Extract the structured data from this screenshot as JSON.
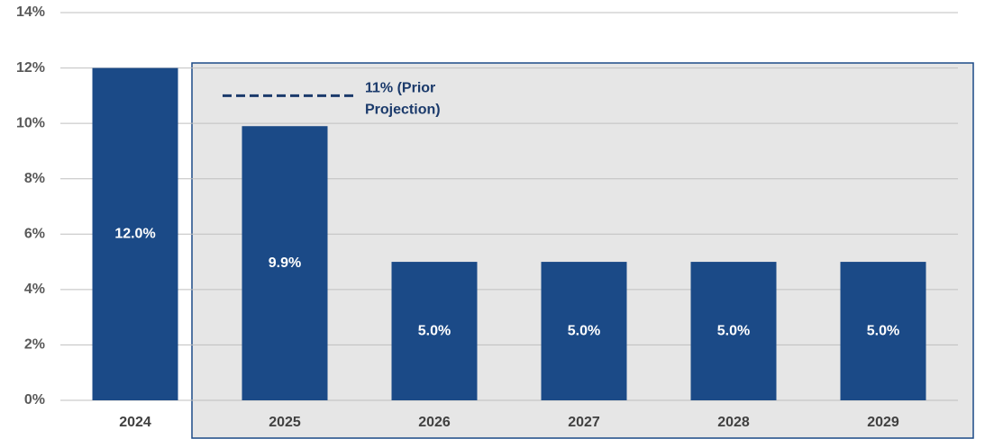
{
  "chart_data": {
    "type": "bar",
    "categories": [
      "2024",
      "2025",
      "2026",
      "2027",
      "2028",
      "2029"
    ],
    "values": [
      12.0,
      9.9,
      5.0,
      5.0,
      5.0,
      5.0
    ],
    "value_labels": [
      "12.0%",
      "9.9%",
      "5.0%",
      "5.0%",
      "5.0%",
      "5.0%"
    ],
    "color": "#1b4a87",
    "ylim": [
      0,
      14
    ],
    "yticks": [
      {
        "value": 0,
        "label": "0%"
      },
      {
        "value": 2,
        "label": "2%"
      },
      {
        "value": 4,
        "label": "4%"
      },
      {
        "value": 6,
        "label": "6%"
      },
      {
        "value": 8,
        "label": "8%"
      },
      {
        "value": 10,
        "label": "10%"
      },
      {
        "value": 12,
        "label": "12%"
      },
      {
        "value": 14,
        "label": "14%"
      }
    ],
    "grid": true,
    "reference": {
      "value": 11,
      "label_lines": [
        "11% (Prior",
        "Projection)"
      ]
    }
  }
}
